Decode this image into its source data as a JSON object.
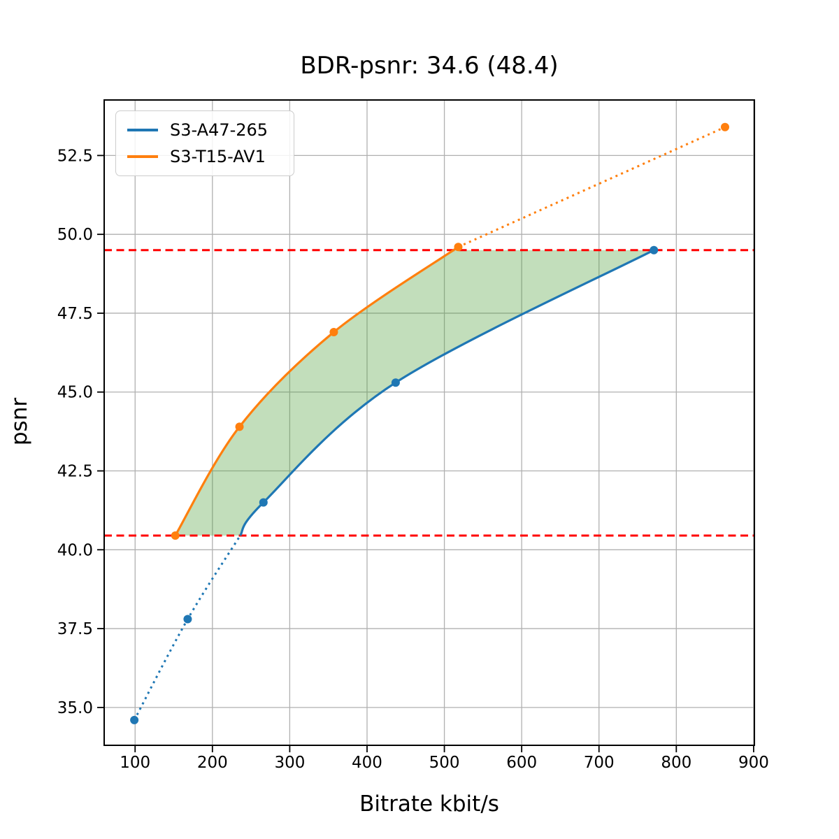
{
  "figure": {
    "title": "BDR-psnr: 34.6 (48.4)",
    "xlabel": "Bitrate kbit/s",
    "ylabel": "psnr"
  },
  "legend": {
    "position": "upper left",
    "entries": [
      {
        "label": "S3-A47-265",
        "color": "#1f77b4"
      },
      {
        "label": "S3-T15-AV1",
        "color": "#ff7f0e"
      }
    ]
  },
  "chart_data": {
    "type": "line",
    "title": "BDR-psnr: 34.6 (48.4)",
    "xlabel": "Bitrate kbit/s",
    "ylabel": "psnr",
    "xlim": [
      60,
      901
    ],
    "ylim": [
      33.8,
      54.26
    ],
    "grid": true,
    "legend_position": "upper left",
    "x_ticks": [
      100,
      200,
      300,
      400,
      500,
      600,
      700,
      800,
      900
    ],
    "x_tick_labels": [
      "100",
      "200",
      "300",
      "400",
      "500",
      "600",
      "700",
      "800",
      "900"
    ],
    "y_ticks": [
      35.0,
      37.5,
      40.0,
      42.5,
      45.0,
      47.5,
      50.0,
      52.5
    ],
    "y_tick_labels": [
      "35.0",
      "37.5",
      "40.0",
      "42.5",
      "45.0",
      "47.5",
      "50.0",
      "52.5"
    ],
    "series": [
      {
        "name": "S3-A47-265",
        "color": "#1f77b4",
        "points": [
          [
            99,
            34.6
          ],
          [
            168,
            37.8
          ],
          [
            266,
            41.5
          ],
          [
            437,
            45.3
          ],
          [
            771,
            49.5
          ]
        ],
        "segments": [
          {
            "style": "dotted",
            "points": [
              [
                99,
                34.6
              ],
              [
                168,
                37.8
              ],
              [
                236,
                40.45
              ]
            ]
          },
          {
            "style": "solid",
            "points": [
              [
                236,
                40.45
              ],
              [
                266,
                41.5
              ],
              [
                437,
                45.3
              ],
              [
                771,
                49.5
              ]
            ]
          }
        ]
      },
      {
        "name": "S3-T15-AV1",
        "color": "#ff7f0e",
        "points": [
          [
            152,
            40.45
          ],
          [
            235,
            43.9
          ],
          [
            357,
            46.9
          ],
          [
            518,
            49.6
          ],
          [
            863,
            53.4
          ]
        ],
        "segments": [
          {
            "style": "solid",
            "points": [
              [
                152,
                40.45
              ],
              [
                235,
                43.9
              ],
              [
                357,
                46.9
              ],
              [
                518,
                49.6
              ]
            ]
          },
          {
            "style": "dotted",
            "points": [
              [
                518,
                49.6
              ],
              [
                863,
                53.4
              ]
            ]
          }
        ]
      }
    ],
    "hlines": [
      {
        "y": 49.5,
        "color": "#ff0000",
        "style": "dashed"
      },
      {
        "y": 40.45,
        "color": "#ff0000",
        "style": "dashed"
      }
    ],
    "fill_between": {
      "color": "rgba(80,160,60,0.35)",
      "upper_curve": [
        [
          152,
          40.45
        ],
        [
          235,
          43.9
        ],
        [
          357,
          46.9
        ],
        [
          512,
          49.5
        ]
      ],
      "top_edge_end": [
        771,
        49.5
      ],
      "lower_curve": [
        [
          771,
          49.5
        ],
        [
          437,
          45.3
        ],
        [
          266,
          41.5
        ],
        [
          236,
          40.45
        ]
      ],
      "close_point": [
        152,
        40.45
      ]
    },
    "colors": {
      "grid": "#b0b0b0",
      "spine": "#000000",
      "tick": "#000000",
      "background": "#ffffff"
    }
  }
}
